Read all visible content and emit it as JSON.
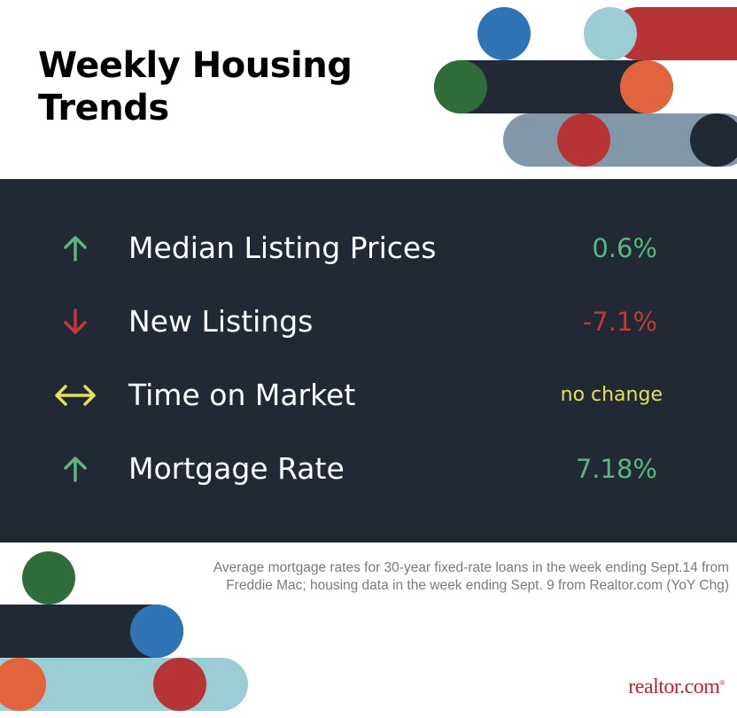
{
  "header": {
    "title_line1": "Weekly Housing",
    "title_line2": "Trends"
  },
  "colors": {
    "panel": "#212a34",
    "up_green": "#5cb57e",
    "down_red": "#c4373b",
    "neutral_yellow": "#e3e05a",
    "brand_red": "#c0272d"
  },
  "metrics": [
    {
      "label": "Median Listing Prices",
      "value": "0.6%",
      "direction": "up",
      "icon": "arrow-up-icon"
    },
    {
      "label": "New Listings",
      "value": "-7.1%",
      "direction": "down",
      "icon": "arrow-down-icon"
    },
    {
      "label": "Time on Market",
      "value": "no change",
      "direction": "neutral",
      "icon": "arrow-left-right-icon"
    },
    {
      "label": "Mortgage Rate",
      "value": "7.18%",
      "direction": "up",
      "icon": "arrow-up-icon"
    }
  ],
  "footnote": {
    "line1": "Average mortgage rates for 30-year fixed-rate loans in the week ending Sept.14 from",
    "line2": "Freddie Mac; housing data in the week ending Sept. 9 from Realtor.com (YoY Chg)"
  },
  "logo": {
    "text": "realtor.com",
    "mark": "®"
  }
}
